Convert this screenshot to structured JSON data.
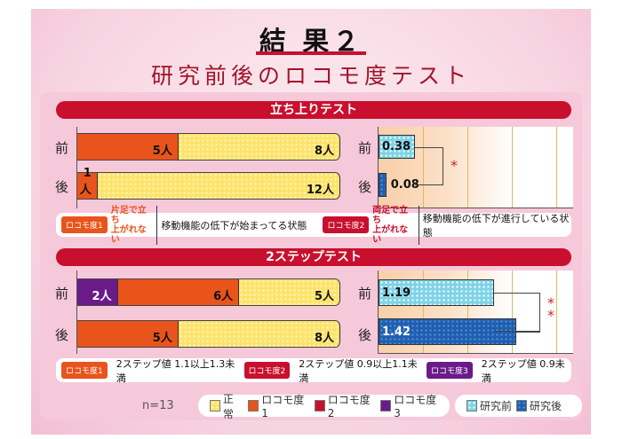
{
  "header": {
    "title": "結 果２",
    "subtitle": "研究前後のロコモ度テスト"
  },
  "colors": {
    "normal": "#fde36a",
    "locomo1": "#e8541b",
    "locomo2": "#c8102e",
    "locomo3": "#6a1b8a",
    "before": "#7fd3e6",
    "after": "#1f5fb0"
  },
  "sections": [
    {
      "title": "立ち上りテスト",
      "legend": [
        {
          "tag": "ロコモ度1",
          "condition": [
            "片足で立ち",
            "上がれない"
          ],
          "desc": "移動機能の低下が始まってる状態"
        },
        {
          "tag": "ロコモ度2",
          "condition": [
            "両足で立ち",
            "上がれない"
          ],
          "desc": "移動機能の低下が進行している状態"
        }
      ]
    },
    {
      "title": "2ステップテスト",
      "legend": [
        {
          "tag": "ロコモ度1",
          "desc": "2ステップ値 1.1以上1.3未満"
        },
        {
          "tag": "ロコモ度2",
          "desc": "2ステップ値 0.9以上1.1未満"
        },
        {
          "tag": "ロコモ度3",
          "desc": "2ステップ値 0.9未満"
        }
      ]
    }
  ],
  "chart_data": [
    {
      "type": "bar",
      "stacked": true,
      "orientation": "horizontal",
      "unit": "人",
      "total": 13,
      "categories": [
        "前",
        "後"
      ],
      "series": [
        {
          "name": "ロコモ度3",
          "values": [
            0,
            0
          ]
        },
        {
          "name": "ロコモ度1",
          "values": [
            5,
            1
          ]
        },
        {
          "name": "正常",
          "values": [
            8,
            12
          ]
        }
      ],
      "labels": [
        [
          "5人",
          "8人"
        ],
        [
          "1人",
          "12人"
        ]
      ]
    },
    {
      "type": "bar",
      "orientation": "horizontal",
      "categories": [
        "前",
        "後"
      ],
      "values": [
        0.38,
        0.08
      ],
      "labels": [
        "0.38",
        "0.08"
      ],
      "significance": "*",
      "xlim": [
        0,
        2
      ]
    },
    {
      "type": "bar",
      "stacked": true,
      "orientation": "horizontal",
      "unit": "人",
      "total": 13,
      "categories": [
        "前",
        "後"
      ],
      "series": [
        {
          "name": "ロコモ度3",
          "values": [
            2,
            0
          ]
        },
        {
          "name": "ロコモ度1",
          "values": [
            6,
            5
          ]
        },
        {
          "name": "正常",
          "values": [
            5,
            8
          ]
        }
      ],
      "labels": [
        [
          "2人",
          "6人",
          "5人"
        ],
        [
          "5人",
          "8人"
        ]
      ]
    },
    {
      "type": "bar",
      "orientation": "horizontal",
      "categories": [
        "前",
        "後"
      ],
      "values": [
        1.19,
        1.42
      ],
      "labels": [
        "1.19",
        "1.42"
      ],
      "significance": "**",
      "xlim": [
        0,
        2
      ]
    }
  ],
  "footer": {
    "n": "n=13",
    "legend_status": [
      "正常",
      "ロコモ度1",
      "ロコモ度2",
      "ロコモ度3"
    ],
    "legend_period": [
      "研究前",
      "研究後"
    ]
  }
}
